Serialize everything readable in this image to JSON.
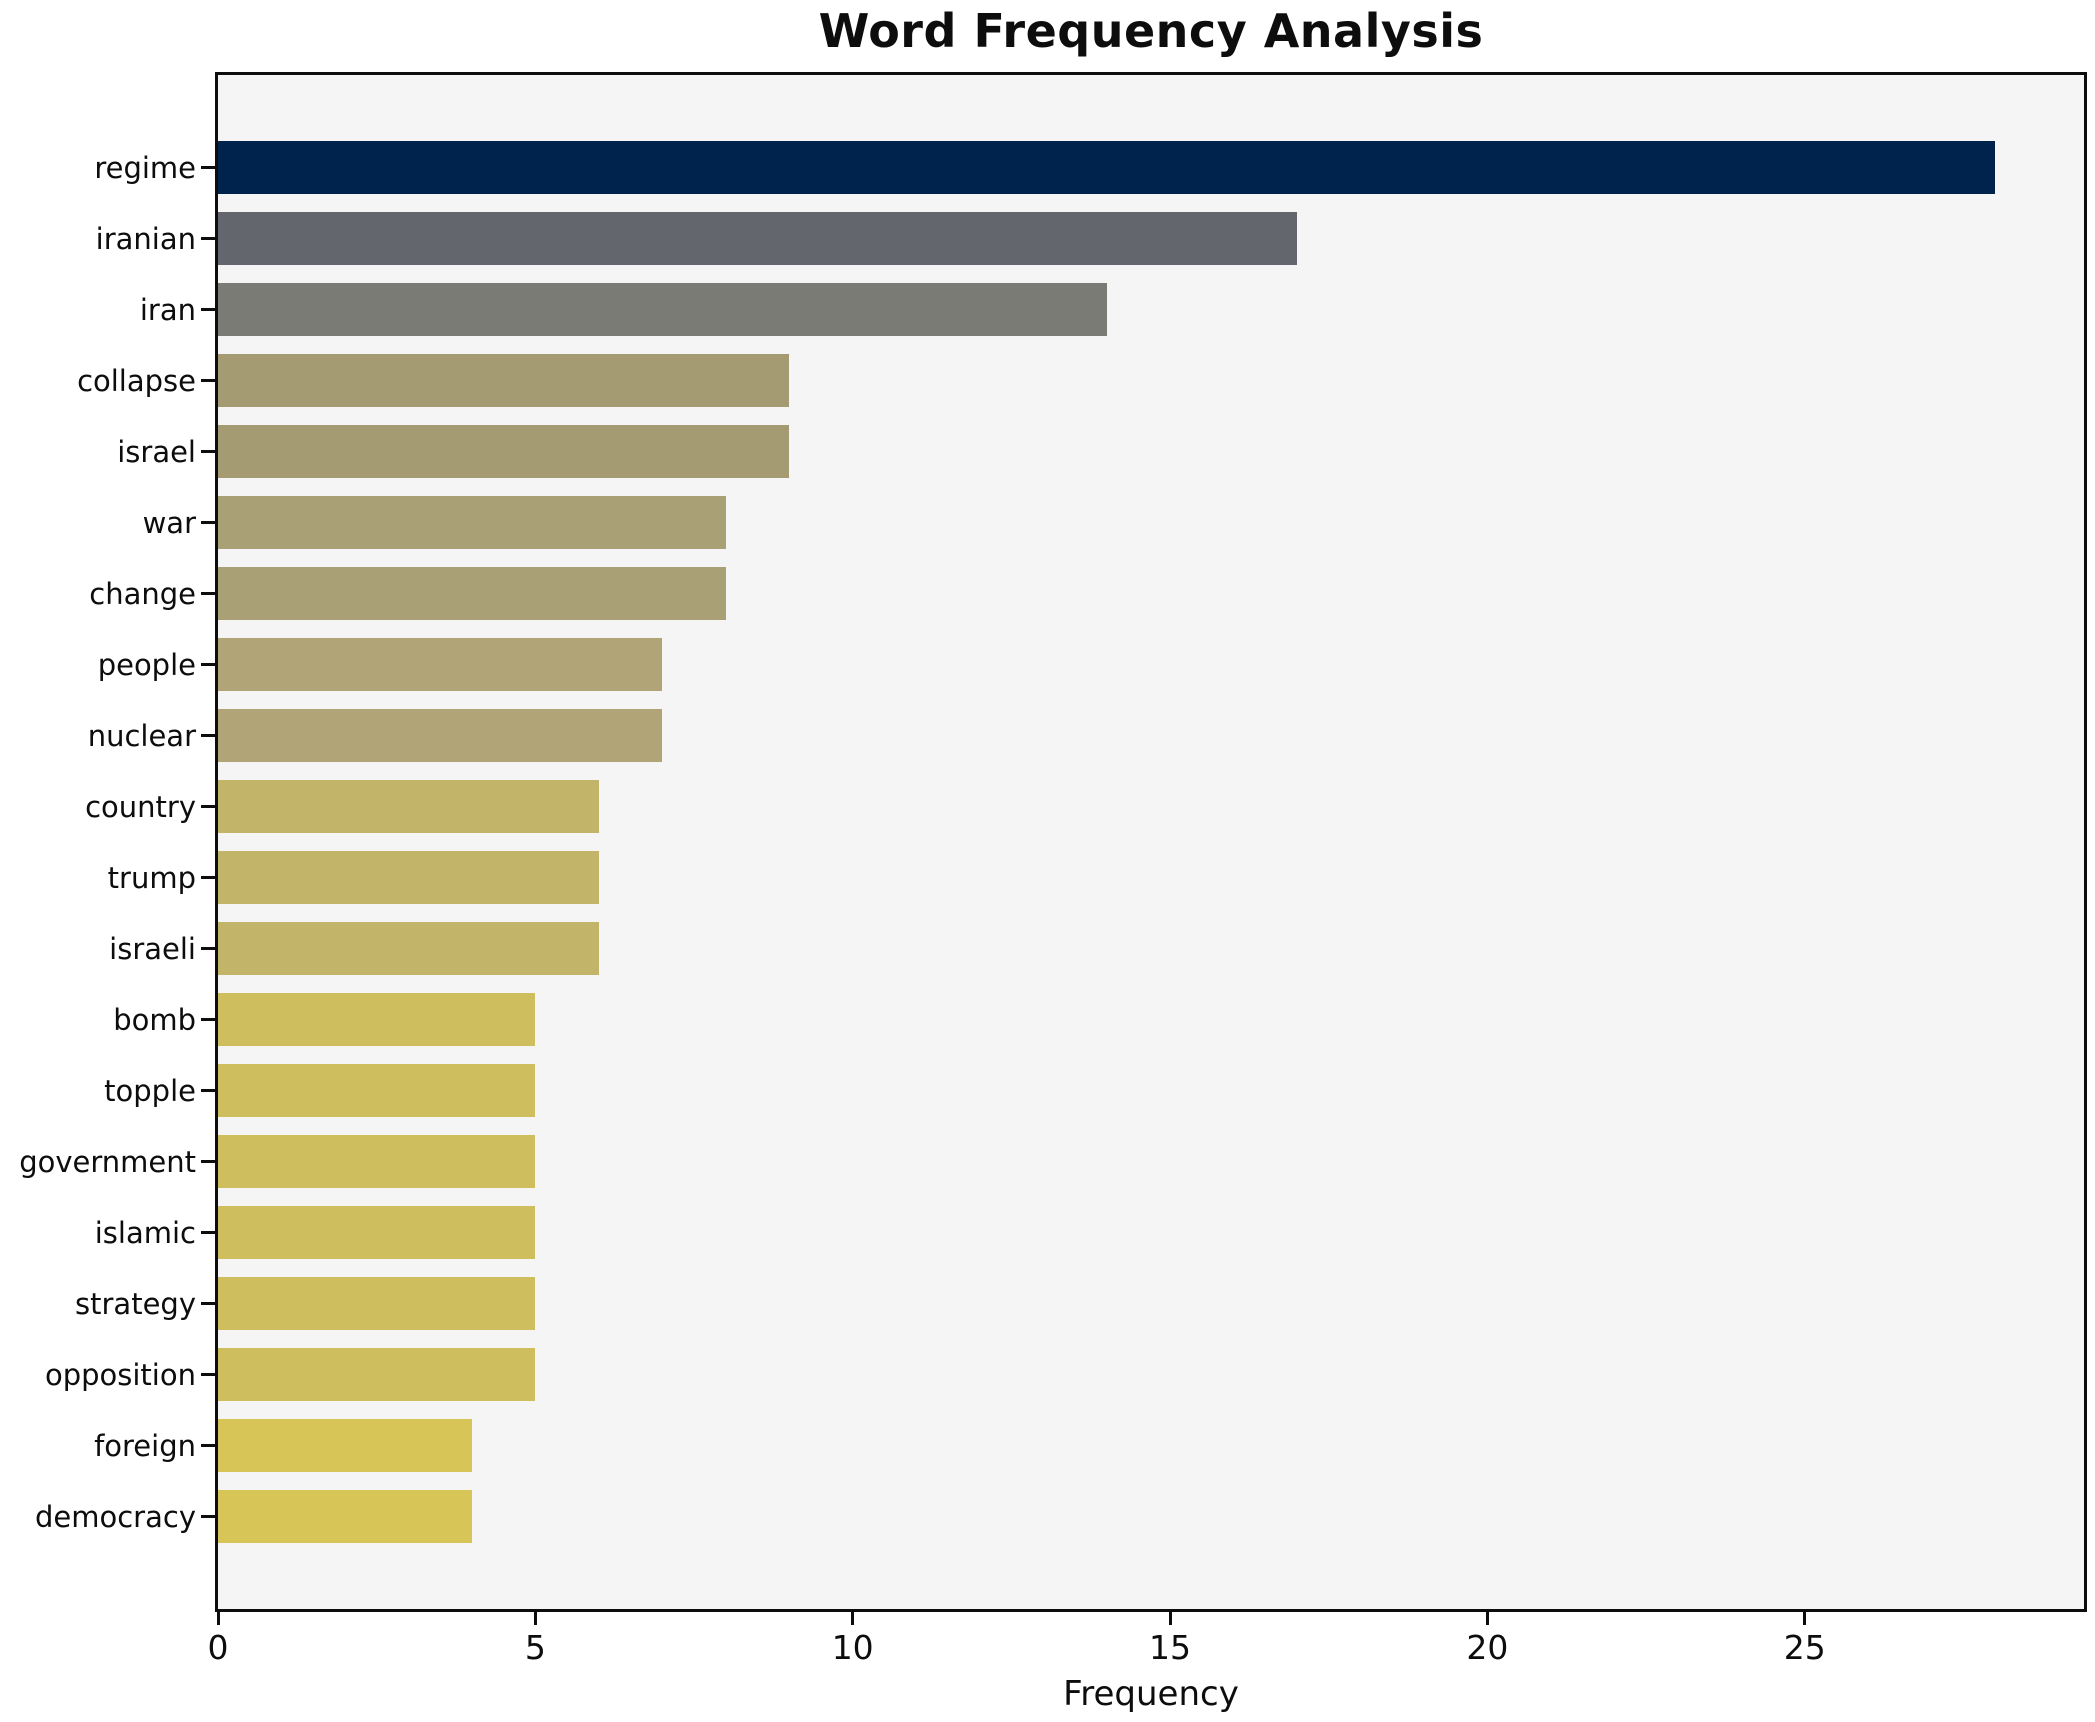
{
  "chart_data": {
    "type": "bar",
    "orientation": "horizontal",
    "title": "Word Frequency Analysis",
    "xlabel": "Frequency",
    "ylabel": "",
    "categories": [
      "regime",
      "iranian",
      "iran",
      "collapse",
      "israel",
      "war",
      "change",
      "people",
      "nuclear",
      "country",
      "trump",
      "israeli",
      "bomb",
      "topple",
      "government",
      "islamic",
      "strategy",
      "opposition",
      "foreign",
      "democracy"
    ],
    "values": [
      28,
      17,
      14,
      9,
      9,
      8,
      8,
      7,
      7,
      6,
      6,
      6,
      5,
      5,
      5,
      5,
      5,
      5,
      4,
      4
    ],
    "bar_colors": [
      "#00234e",
      "#64666e",
      "#7b7b76",
      "#a49b73",
      "#a49b73",
      "#a9a076",
      "#a9a076",
      "#b1a577",
      "#b1a577",
      "#c2b469",
      "#c2b469",
      "#c2b469",
      "#cebe5e",
      "#cebe5e",
      "#cebe5e",
      "#cebe5e",
      "#cebe5e",
      "#cebe5e",
      "#d7c557",
      "#d7c557"
    ],
    "xlim": [
      0,
      29.4
    ],
    "xticks": [
      0,
      5,
      10,
      15,
      20,
      25
    ],
    "grid": false,
    "legend": false,
    "plot_background": "#f5f5f6",
    "figure_background": "#ffffff",
    "spine_color": "#0d0d0d"
  }
}
